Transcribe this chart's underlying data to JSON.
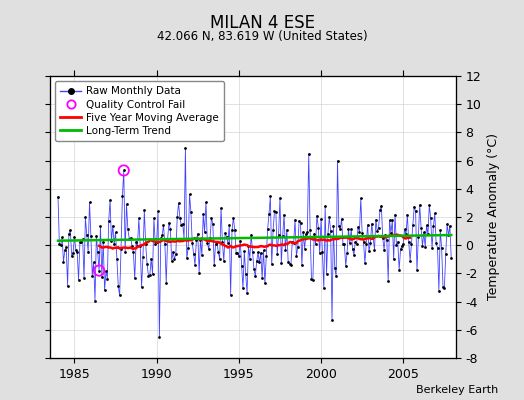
{
  "title": "MILAN 4 ESE",
  "subtitle": "42.066 N, 83.619 W (United States)",
  "ylabel": "Temperature Anomaly (°C)",
  "credit": "Berkeley Earth",
  "ylim": [
    -8,
    12
  ],
  "yticks": [
    -8,
    -6,
    -4,
    -2,
    0,
    2,
    4,
    6,
    8,
    10,
    12
  ],
  "xlim": [
    1983.5,
    2008.2
  ],
  "xticks": [
    1985,
    1990,
    1995,
    2000,
    2005
  ],
  "bg_color": "#e0e0e0",
  "plot_bg_color": "#ffffff",
  "raw_line_color": "#4444ff",
  "raw_marker_color": "#000000",
  "ma_color": "#ff0000",
  "trend_color": "#00bb00",
  "qc_color": "#ff00ff",
  "start_year": 1984,
  "start_month": 1,
  "n_months": 288,
  "seed": 42
}
